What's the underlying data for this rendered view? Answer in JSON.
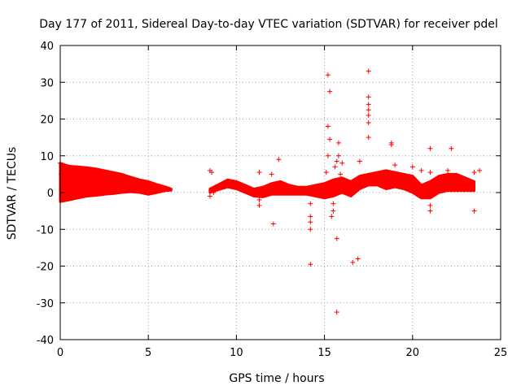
{
  "chart_data": {
    "type": "scatter",
    "title": "Day 177 of 2011, Sidereal Day-to-day VTEC variation (SDTVAR) for receiver pdel",
    "xlabel": "GPS time / hours",
    "ylabel": "SDTVAR / TECUs",
    "xlim": [
      0,
      25
    ],
    "ylim": [
      -40,
      40
    ],
    "xticks": [
      0,
      5,
      10,
      15,
      20,
      25
    ],
    "yticks": [
      -40,
      -30,
      -20,
      -10,
      0,
      10,
      20,
      30,
      40
    ],
    "xtick_labels": [
      "0",
      "5",
      "10",
      "15",
      "20",
      "25"
    ],
    "ytick_labels": [
      "-40",
      "-30",
      "-20",
      "-10",
      "0",
      "10",
      "20",
      "30",
      "40"
    ],
    "grid": true,
    "marker": "+",
    "color": "#ff0000",
    "bands": [
      {
        "name": "dense segment 1",
        "x": [
          0.0,
          0.5,
          1.0,
          1.5,
          2.0,
          2.5,
          3.0,
          3.5,
          4.0,
          4.5,
          5.0,
          5.5,
          6.0,
          6.3
        ],
        "ymin": [
          -2.5,
          -2.0,
          -1.5,
          -1.0,
          -0.8,
          -0.5,
          -0.3,
          0.0,
          0.2,
          0.0,
          -0.5,
          0.0,
          0.5,
          0.6
        ],
        "ymax": [
          8.0,
          7.2,
          7.0,
          6.8,
          6.5,
          6.0,
          5.5,
          5.0,
          4.2,
          3.5,
          3.0,
          2.2,
          1.5,
          1.0
        ]
      },
      {
        "name": "dense segment 2",
        "x": [
          8.5,
          9.0,
          9.5,
          10.0,
          10.5,
          11.0,
          11.5,
          12.0,
          12.5,
          13.0,
          13.5,
          14.0,
          14.5,
          15.0,
          15.5,
          16.0,
          16.5,
          17.0,
          17.5,
          18.0,
          18.5,
          19.0,
          19.5,
          20.0,
          20.5,
          21.0,
          21.5,
          22.0,
          22.5,
          23.0,
          23.5
        ],
        "ymin": [
          0.0,
          0.8,
          1.5,
          1.0,
          0.0,
          -1.0,
          -1.2,
          -0.5,
          -0.5,
          -0.5,
          -0.5,
          -0.5,
          -1.0,
          -1.5,
          -1.0,
          0.0,
          -1.0,
          1.0,
          2.0,
          2.0,
          1.0,
          1.5,
          1.0,
          0.0,
          -1.5,
          -1.5,
          0.0,
          0.5,
          0.5,
          0.5,
          0.5
        ],
        "ymax": [
          1.0,
          2.2,
          3.5,
          3.0,
          2.0,
          1.0,
          1.5,
          2.5,
          3.0,
          2.0,
          1.5,
          1.5,
          2.0,
          2.5,
          3.5,
          4.0,
          3.0,
          4.5,
          5.0,
          5.5,
          6.0,
          5.5,
          5.0,
          4.5,
          2.0,
          3.0,
          4.5,
          5.0,
          5.0,
          4.0,
          3.0
        ]
      }
    ],
    "points": [
      [
        0.0,
        8.0
      ],
      [
        0.05,
        5.0
      ],
      [
        8.5,
        6.0
      ],
      [
        8.6,
        5.5
      ],
      [
        8.8,
        1.5
      ],
      [
        8.5,
        -1.0
      ],
      [
        8.7,
        0.0
      ],
      [
        11.3,
        5.5
      ],
      [
        11.3,
        -3.5
      ],
      [
        11.3,
        -2.0
      ],
      [
        12.0,
        5.0
      ],
      [
        12.1,
        -8.5
      ],
      [
        12.4,
        9.0
      ],
      [
        14.2,
        -19.5
      ],
      [
        14.2,
        -10.0
      ],
      [
        14.2,
        -6.5
      ],
      [
        14.2,
        -3.0
      ],
      [
        14.2,
        -8.0
      ],
      [
        15.2,
        32.0
      ],
      [
        15.3,
        27.5
      ],
      [
        15.2,
        18.0
      ],
      [
        15.3,
        14.5
      ],
      [
        15.2,
        10.0
      ],
      [
        15.1,
        5.5
      ],
      [
        15.5,
        -3.0
      ],
      [
        15.5,
        -5.0
      ],
      [
        15.4,
        -6.5
      ],
      [
        15.7,
        -12.5
      ],
      [
        15.7,
        -32.5
      ],
      [
        15.8,
        13.5
      ],
      [
        15.8,
        10.0
      ],
      [
        15.7,
        8.5
      ],
      [
        15.6,
        7.0
      ],
      [
        15.9,
        5.0
      ],
      [
        16.6,
        -19.0
      ],
      [
        16.9,
        -18.0
      ],
      [
        17.5,
        33.0
      ],
      [
        17.5,
        26.0
      ],
      [
        17.5,
        24.0
      ],
      [
        17.5,
        21.0
      ],
      [
        17.5,
        19.0
      ],
      [
        17.5,
        15.0
      ],
      [
        17.5,
        22.5
      ],
      [
        18.8,
        13.0
      ],
      [
        18.8,
        13.5
      ],
      [
        17.0,
        8.5
      ],
      [
        16.0,
        8.0
      ],
      [
        20.0,
        7.0
      ],
      [
        21.0,
        12.0
      ],
      [
        21.0,
        5.5
      ],
      [
        21.0,
        -3.5
      ],
      [
        21.0,
        -5.0
      ],
      [
        22.2,
        12.0
      ],
      [
        22.0,
        6.0
      ],
      [
        23.5,
        5.5
      ],
      [
        23.8,
        6.0
      ],
      [
        23.5,
        -5.0
      ],
      [
        19.0,
        7.5
      ],
      [
        20.5,
        6.0
      ]
    ]
  }
}
